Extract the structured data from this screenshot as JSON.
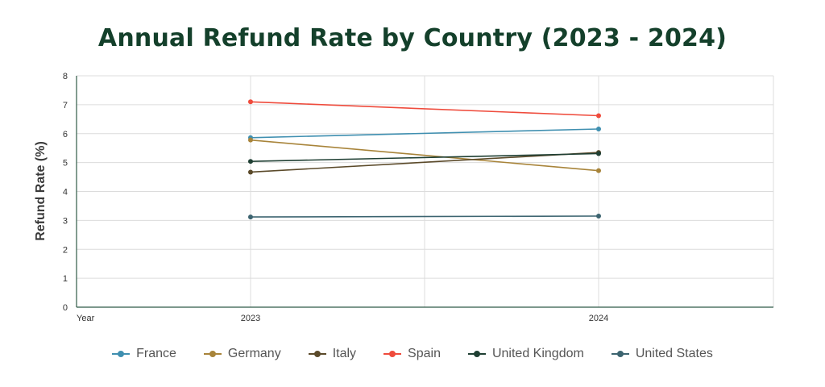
{
  "chart_data": {
    "type": "line",
    "title": "Annual Refund Rate by Country (2023 - 2024)",
    "xlabel": "Year",
    "ylabel": "Refund Rate (%)",
    "categories": [
      "2023",
      "2024"
    ],
    "ylim": [
      0,
      8
    ],
    "yticks": [
      "0",
      "1",
      "2",
      "3",
      "4",
      "5",
      "6",
      "7",
      "8"
    ],
    "grid": true,
    "legend_position": "bottom",
    "series": [
      {
        "name": "France",
        "color": "#3f8fb0",
        "values": [
          5.86,
          6.16
        ]
      },
      {
        "name": "Germany",
        "color": "#a8843a",
        "values": [
          5.78,
          4.72
        ]
      },
      {
        "name": "Italy",
        "color": "#5b4a2a",
        "values": [
          4.67,
          5.35
        ]
      },
      {
        "name": "Spain",
        "color": "#ef4b3c",
        "values": [
          7.1,
          6.62
        ]
      },
      {
        "name": "United Kingdom",
        "color": "#1f3f33",
        "values": [
          5.04,
          5.31
        ]
      },
      {
        "name": "United States",
        "color": "#3c6470",
        "values": [
          3.12,
          3.15
        ]
      }
    ]
  }
}
